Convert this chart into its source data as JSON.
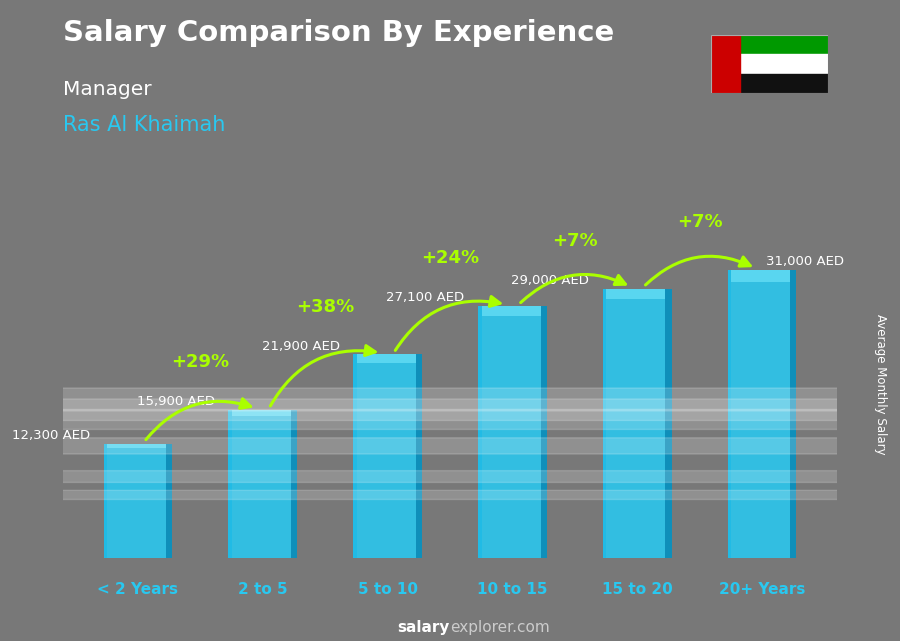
{
  "title": "Salary Comparison By Experience",
  "subtitle": "Manager",
  "location": "Ras Al Khaimah",
  "categories": [
    "< 2 Years",
    "2 to 5",
    "5 to 10",
    "10 to 15",
    "15 to 20",
    "20+ Years"
  ],
  "values": [
    12300,
    15900,
    21900,
    27100,
    29000,
    31000
  ],
  "pct_changes": [
    null,
    "+29%",
    "+38%",
    "+24%",
    "+7%",
    "+7%"
  ],
  "bar_face_color": "#29c8f0",
  "bar_side_color": "#0d8db8",
  "bar_edge_color": "#1ab5e0",
  "arrow_color": "#aaff00",
  "pct_color": "#aaff00",
  "title_color": "#ffffff",
  "subtitle_color": "#ffffff",
  "location_color": "#29c8f0",
  "value_label_color": "#ffffff",
  "cat_label_color": "#29c8f0",
  "bg_color": "#787878",
  "footer_bold": "salary",
  "footer_normal": "explorer.com",
  "ylabel": "Average Monthly Salary",
  "ylim_max": 38000,
  "flag_colors": [
    "#009900",
    "#ffffff",
    "#000000",
    "#cc0000"
  ]
}
